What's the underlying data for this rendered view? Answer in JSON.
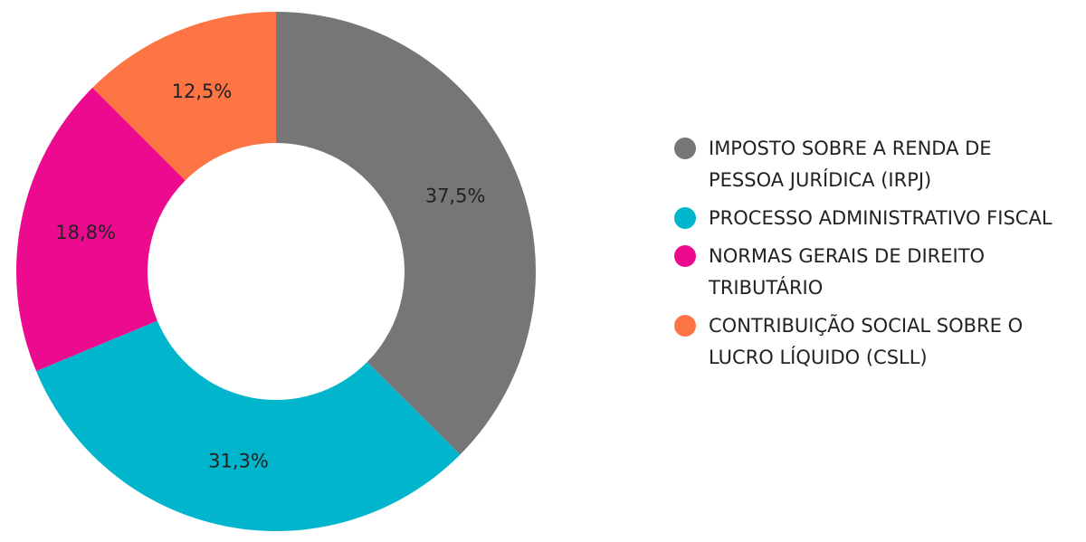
{
  "chart_data": {
    "type": "donut",
    "categories": [
      "IMPOSTO SOBRE A RENDA DE PESSOA JURÍDICA (IRPJ)",
      "PROCESSO ADMINISTRATIVO FISCAL",
      "NORMAS GERAIS DE DIREITO TRIBUTÁRIO",
      "CONTRIBUIÇÃO SOCIAL SOBRE O LUCRO LÍQUIDO (CSLL)"
    ],
    "values": [
      37.5,
      31.3,
      18.8,
      12.5
    ],
    "value_labels": [
      "37,5%",
      "31,3%",
      "18,8%",
      "12,5%"
    ],
    "colors": [
      "#767676",
      "#00b5cc",
      "#ec0b8f",
      "#fd7445"
    ],
    "legend": "right"
  }
}
